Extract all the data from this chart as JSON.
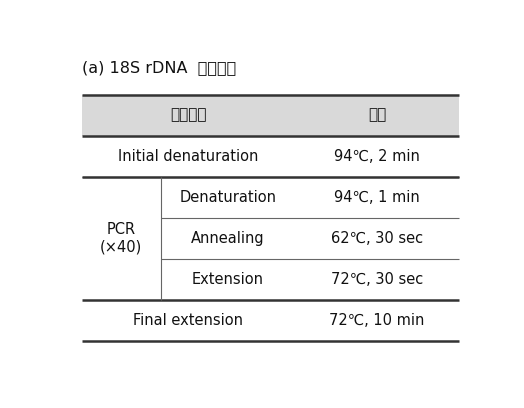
{
  "title": "(a) 18S rDNA  반응조건",
  "header": [
    "반응단계",
    "조건"
  ],
  "header_bg": "#d9d9d9",
  "rows": [
    {
      "col1_main": "Initial denaturation",
      "col2": "94℃, 2 min",
      "pcr_group": false,
      "thick_bottom": true
    },
    {
      "col1_main": "Denaturation",
      "col2": "94℃, 1 min",
      "pcr_group": true,
      "thick_bottom": false
    },
    {
      "col1_main": "Annealing",
      "col2": "62℃, 30 sec",
      "pcr_group": true,
      "thick_bottom": false
    },
    {
      "col1_main": "Extension",
      "col2": "72℃, 30 sec",
      "pcr_group": true,
      "thick_bottom": true
    },
    {
      "col1_main": "Final extension",
      "col2": "72℃, 10 min",
      "pcr_group": false,
      "thick_bottom": false
    }
  ],
  "pcr_label": "PCR\n(×40)",
  "fig_width": 5.24,
  "fig_height": 4.08,
  "dpi": 100,
  "font_size": 10.5,
  "title_font_size": 11.5,
  "background_color": "#ffffff",
  "line_color": "#666666",
  "thick_line_color": "#333333",
  "text_color": "#111111"
}
